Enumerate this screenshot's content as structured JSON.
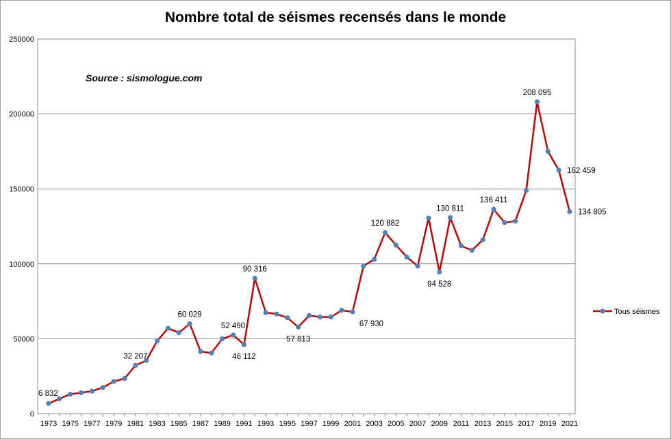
{
  "chart_data": {
    "type": "line",
    "title": "Nombre total de séismes recensés dans le monde",
    "annotation": "Source : sismologue.com",
    "x": [
      1973,
      1974,
      1975,
      1976,
      1977,
      1978,
      1979,
      1980,
      1981,
      1982,
      1983,
      1984,
      1985,
      1986,
      1987,
      1988,
      1989,
      1990,
      1991,
      1992,
      1993,
      1994,
      1995,
      1996,
      1997,
      1998,
      1999,
      2000,
      2001,
      2002,
      2003,
      2004,
      2005,
      2006,
      2007,
      2008,
      2009,
      2010,
      2011,
      2012,
      2013,
      2014,
      2015,
      2016,
      2017,
      2018,
      2019,
      2020,
      2021
    ],
    "x_tick_labels": [
      "1973",
      "1975",
      "1977",
      "1979",
      "1981",
      "1983",
      "1985",
      "1987",
      "1989",
      "1991",
      "1993",
      "1995",
      "1997",
      "1999",
      "2001",
      "2003",
      "2005",
      "2007",
      "2009",
      "2011",
      "2013",
      "2015",
      "2017",
      "2019",
      "2021"
    ],
    "series": [
      {
        "name": "Tous séismes",
        "color": "#c00000",
        "marker_color": "#4f81bd",
        "values": [
          6832,
          10000,
          13000,
          14000,
          15000,
          17500,
          21500,
          23500,
          32207,
          35500,
          48500,
          57000,
          54000,
          60029,
          41500,
          40500,
          50000,
          52490,
          46112,
          90316,
          67500,
          66500,
          64000,
          57813,
          65500,
          64500,
          64500,
          69000,
          67930,
          98500,
          103000,
          120882,
          112500,
          104500,
          98500,
          130500,
          94528,
          130811,
          112000,
          109000,
          116000,
          136411,
          127500,
          128500,
          149000,
          208095,
          175000,
          162459,
          134805
        ]
      }
    ],
    "data_labels": [
      {
        "x": 1973,
        "text": "6 832",
        "pos": "above"
      },
      {
        "x": 1981,
        "text": "32 207",
        "pos": "above"
      },
      {
        "x": 1986,
        "text": "60 029",
        "pos": "above"
      },
      {
        "x": 1990,
        "text": "52 490",
        "pos": "above"
      },
      {
        "x": 1991,
        "text": "46 112",
        "pos": "below"
      },
      {
        "x": 1992,
        "text": "90 316",
        "pos": "above"
      },
      {
        "x": 1996,
        "text": "57 813",
        "pos": "below"
      },
      {
        "x": 2001,
        "text": "67 930",
        "pos": "below-right"
      },
      {
        "x": 2004,
        "text": "120 882",
        "pos": "above"
      },
      {
        "x": 2009,
        "text": "94 528",
        "pos": "below"
      },
      {
        "x": 2010,
        "text": "130 811",
        "pos": "above"
      },
      {
        "x": 2014,
        "text": "136 411",
        "pos": "above"
      },
      {
        "x": 2018,
        "text": "208 095",
        "pos": "above"
      },
      {
        "x": 2020,
        "text": "162 459",
        "pos": "right"
      },
      {
        "x": 2021,
        "text": "134 805",
        "pos": "right"
      }
    ],
    "y_tick_labels": [
      "0",
      "50000",
      "100000",
      "150000",
      "200000",
      "250000"
    ],
    "ylim": [
      0,
      250000
    ],
    "xlim": [
      1973,
      2021
    ],
    "grid": true,
    "legend": "right"
  }
}
